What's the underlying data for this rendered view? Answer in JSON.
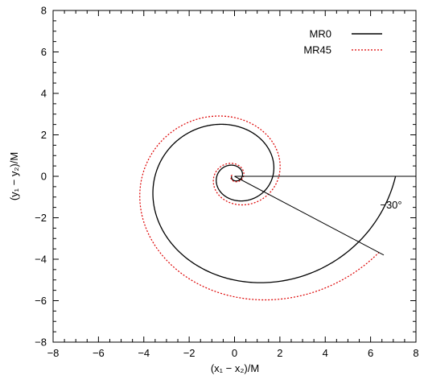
{
  "chart_data": {
    "type": "line",
    "xlabel": "(x₁ − x₂)/M",
    "ylabel": "(y₁ − y₂)/M",
    "xlim": [
      -8,
      8
    ],
    "ylim": [
      -8,
      8
    ],
    "xticks": [
      "−8",
      "−6",
      "−4",
      "−2",
      "0",
      "2",
      "4",
      "6",
      "8"
    ],
    "yticks": [
      "−8",
      "−6",
      "−4",
      "−2",
      "0",
      "2",
      "4",
      "6",
      "8"
    ],
    "legend_position": "top-right",
    "grid": false,
    "series": [
      {
        "name": "MR0",
        "color": "#000000",
        "style": "solid",
        "spiral": {
          "r_start": 0.12,
          "r_end": 7.1,
          "turns": 2.5,
          "phase_end_deg": 0
        }
      },
      {
        "name": "MR45",
        "color": "#dd0000",
        "style": "dotted",
        "spiral": {
          "r_start": 0.12,
          "r_end": 7.35,
          "turns": 2.5,
          "phase_end_deg": -30
        }
      }
    ],
    "annotation": {
      "text": "−30°",
      "angle_deg": 30,
      "ray_length": 7.6
    }
  }
}
